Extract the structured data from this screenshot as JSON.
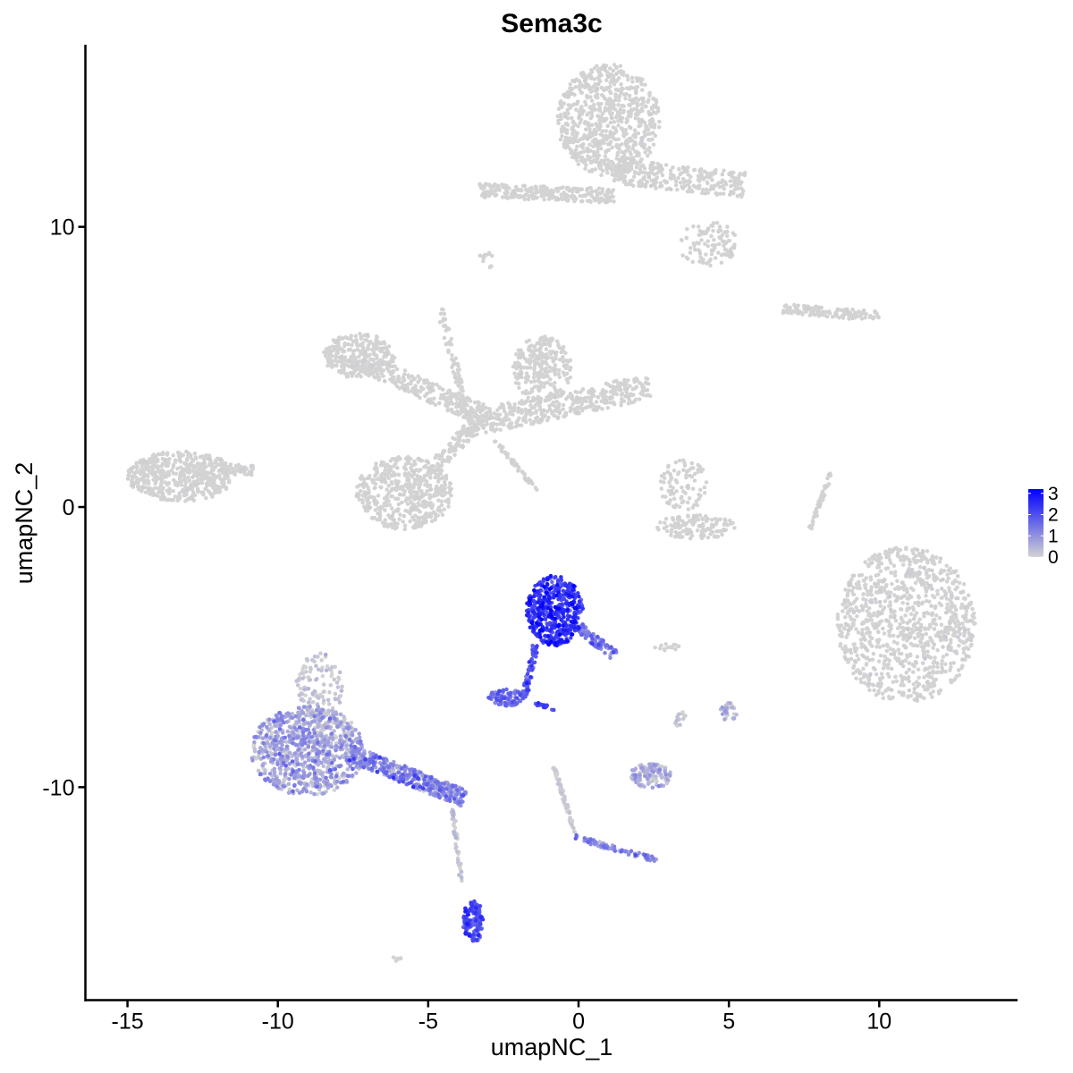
{
  "chart_data": {
    "type": "scatter",
    "title": "Sema3c",
    "xlabel": "umapNC_1",
    "ylabel": "umapNC_2",
    "xlim": [
      -16.4,
      14.6
    ],
    "ylim": [
      -17.6,
      16.5
    ],
    "x_ticks": [
      -15,
      -10,
      -5,
      0,
      5,
      10
    ],
    "y_ticks": [
      -10,
      0,
      10
    ],
    "x_tick_labels": [
      "-15",
      "-10",
      "-5",
      "0",
      "5",
      "10"
    ],
    "y_tick_labels": [
      "-10",
      "0",
      "10"
    ],
    "grid": false,
    "legend": {
      "position": "right",
      "type": "colorbar",
      "title": "",
      "min": 0,
      "max": 3.2,
      "ticks": [
        0,
        1,
        2,
        3
      ],
      "tick_labels": [
        "0",
        "1",
        "2",
        "3"
      ]
    },
    "color_low": "#d3d3d3",
    "color_high": "#0000ff",
    "marker_size_px": 4.5,
    "clusters": [
      {
        "shape": "ellipse",
        "cx": 1.0,
        "cy": 13.8,
        "rx": 1.7,
        "ry": 2.0,
        "n": 750,
        "expr_mean": 0.0,
        "expr_sd": 0.03
      },
      {
        "shape": "line",
        "x1": -3.3,
        "y1": 11.3,
        "x2": 1.2,
        "y2": 11.1,
        "width": 0.5,
        "n": 250,
        "expr_mean": 0.0,
        "expr_sd": 0.03
      },
      {
        "shape": "line",
        "x1": 1.0,
        "y1": 12.0,
        "x2": 5.5,
        "y2": 11.5,
        "width": 0.9,
        "n": 280,
        "expr_mean": 0.0,
        "expr_sd": 0.03
      },
      {
        "shape": "ellipse",
        "cx": 4.3,
        "cy": 9.4,
        "rx": 1.0,
        "ry": 0.8,
        "n": 100,
        "expr_mean": 0.0,
        "expr_sd": 0.03
      },
      {
        "shape": "ellipse",
        "cx": -3.1,
        "cy": 8.8,
        "rx": 0.3,
        "ry": 0.3,
        "n": 12,
        "expr_mean": 0.0,
        "expr_sd": 0.0
      },
      {
        "shape": "line",
        "x1": 6.8,
        "y1": 7.1,
        "x2": 10.0,
        "y2": 6.8,
        "width": 0.35,
        "n": 130,
        "expr_mean": 0.0,
        "expr_sd": 0.03
      },
      {
        "shape": "ellipse",
        "cx": -7.3,
        "cy": 5.4,
        "rx": 1.2,
        "ry": 0.8,
        "n": 260,
        "expr_mean": 0.0,
        "expr_sd": 0.03
      },
      {
        "shape": "line",
        "x1": -7.5,
        "y1": 5.3,
        "x2": -3.0,
        "y2": 3.2,
        "width": 0.7,
        "n": 260,
        "expr_mean": 0.0,
        "expr_sd": 0.03
      },
      {
        "shape": "line",
        "x1": -4.6,
        "y1": 7.1,
        "x2": -3.7,
        "y2": 3.2,
        "width": 0.25,
        "n": 80,
        "expr_mean": 0.0,
        "expr_sd": 0.03
      },
      {
        "shape": "line",
        "x1": -3.5,
        "y1": 3.0,
        "x2": 2.4,
        "y2": 4.3,
        "width": 0.9,
        "n": 380,
        "expr_mean": 0.0,
        "expr_sd": 0.03
      },
      {
        "shape": "ellipse",
        "cx": -1.2,
        "cy": 4.9,
        "rx": 1.0,
        "ry": 1.2,
        "n": 260,
        "expr_mean": 0.0,
        "expr_sd": 0.03
      },
      {
        "shape": "line",
        "x1": -3.4,
        "y1": 3.0,
        "x2": -5.0,
        "y2": 1.2,
        "width": 0.5,
        "n": 110,
        "expr_mean": 0.0,
        "expr_sd": 0.03
      },
      {
        "shape": "ellipse",
        "cx": -5.8,
        "cy": 0.5,
        "rx": 1.6,
        "ry": 1.3,
        "n": 480,
        "expr_mean": 0.0,
        "expr_sd": 0.03
      },
      {
        "shape": "line",
        "x1": -2.8,
        "y1": 2.4,
        "x2": -1.4,
        "y2": 0.6,
        "width": 0.12,
        "n": 45,
        "expr_mean": 0.0,
        "expr_sd": 0.05
      },
      {
        "shape": "ellipse",
        "cx": -13.2,
        "cy": 1.1,
        "rx": 1.8,
        "ry": 0.9,
        "n": 520,
        "expr_mean": 0.0,
        "expr_sd": 0.03
      },
      {
        "shape": "line",
        "x1": -12.0,
        "y1": 1.4,
        "x2": -10.8,
        "y2": 1.3,
        "width": 0.35,
        "n": 60,
        "expr_mean": 0.0,
        "expr_sd": 0.03
      },
      {
        "shape": "ellipse",
        "cx": 3.5,
        "cy": 0.8,
        "rx": 0.8,
        "ry": 0.9,
        "n": 90,
        "expr_mean": 0.0,
        "expr_sd": 0.03
      },
      {
        "shape": "ellipse",
        "cx": 3.9,
        "cy": -0.7,
        "rx": 1.3,
        "ry": 0.45,
        "n": 130,
        "expr_mean": 0.0,
        "expr_sd": 0.03
      },
      {
        "shape": "line",
        "x1": 7.7,
        "y1": -0.8,
        "x2": 8.4,
        "y2": 1.2,
        "width": 0.12,
        "n": 55,
        "expr_mean": 0.0,
        "expr_sd": 0.03
      },
      {
        "shape": "ellipse",
        "cx": 10.9,
        "cy": -4.2,
        "rx": 2.3,
        "ry": 2.8,
        "n": 1000,
        "expr_mean": 0.0,
        "expr_sd": 0.05
      },
      {
        "shape": "ellipse",
        "cx": -0.8,
        "cy": -3.7,
        "rx": 0.95,
        "ry": 1.25,
        "n": 480,
        "expr_mean": 2.3,
        "expr_sd": 0.45
      },
      {
        "shape": "line",
        "x1": 0.0,
        "y1": -4.3,
        "x2": 1.2,
        "y2": -5.3,
        "width": 0.35,
        "n": 90,
        "expr_mean": 1.1,
        "expr_sd": 0.5
      },
      {
        "shape": "line",
        "x1": -1.4,
        "y1": -4.8,
        "x2": -1.8,
        "y2": -6.8,
        "width": 0.2,
        "n": 70,
        "expr_mean": 1.7,
        "expr_sd": 0.4
      },
      {
        "shape": "ellipse",
        "cx": -2.4,
        "cy": -6.8,
        "rx": 0.6,
        "ry": 0.3,
        "n": 90,
        "expr_mean": 1.4,
        "expr_sd": 0.35
      },
      {
        "shape": "line",
        "x1": -1.5,
        "y1": -7.0,
        "x2": -0.8,
        "y2": -7.2,
        "width": 0.12,
        "n": 18,
        "expr_mean": 2.0,
        "expr_sd": 0.3
      },
      {
        "shape": "ellipse",
        "cx": -9.0,
        "cy": -8.7,
        "rx": 1.9,
        "ry": 1.6,
        "n": 900,
        "expr_mean": 0.55,
        "expr_sd": 0.45
      },
      {
        "shape": "ellipse",
        "cx": -8.6,
        "cy": -6.4,
        "rx": 0.8,
        "ry": 1.2,
        "n": 120,
        "expr_mean": 0.15,
        "expr_sd": 0.2
      },
      {
        "shape": "line",
        "x1": -7.6,
        "y1": -8.8,
        "x2": -3.8,
        "y2": -10.4,
        "width": 0.6,
        "n": 380,
        "expr_mean": 1.0,
        "expr_sd": 0.5
      },
      {
        "shape": "line",
        "x1": -4.2,
        "y1": -10.6,
        "x2": -3.9,
        "y2": -13.4,
        "width": 0.12,
        "n": 45,
        "expr_mean": 0.15,
        "expr_sd": 0.2
      },
      {
        "shape": "ellipse",
        "cx": -3.5,
        "cy": -14.8,
        "rx": 0.35,
        "ry": 0.75,
        "n": 140,
        "expr_mean": 1.85,
        "expr_sd": 0.4
      },
      {
        "shape": "line",
        "x1": -0.8,
        "y1": -9.3,
        "x2": -0.1,
        "y2": -11.7,
        "width": 0.12,
        "n": 60,
        "expr_mean": 0.05,
        "expr_sd": 0.1
      },
      {
        "shape": "line",
        "x1": -0.1,
        "y1": -11.8,
        "x2": 2.6,
        "y2": -12.6,
        "width": 0.18,
        "n": 80,
        "expr_mean": 1.1,
        "expr_sd": 0.4
      },
      {
        "shape": "ellipse",
        "cx": 2.4,
        "cy": -9.6,
        "rx": 0.7,
        "ry": 0.45,
        "n": 120,
        "expr_mean": 0.4,
        "expr_sd": 0.35
      },
      {
        "shape": "ellipse",
        "cx": 5.0,
        "cy": -7.3,
        "rx": 0.3,
        "ry": 0.4,
        "n": 30,
        "expr_mean": 0.3,
        "expr_sd": 0.3
      },
      {
        "shape": "ellipse",
        "cx": 3.4,
        "cy": -7.6,
        "rx": 0.2,
        "ry": 0.3,
        "n": 14,
        "expr_mean": 0.1,
        "expr_sd": 0.15
      },
      {
        "shape": "ellipse",
        "cx": 2.9,
        "cy": -5.0,
        "rx": 0.5,
        "ry": 0.12,
        "n": 14,
        "expr_mean": 0.0,
        "expr_sd": 0.0
      },
      {
        "shape": "ellipse",
        "cx": -6.0,
        "cy": -16.1,
        "rx": 0.2,
        "ry": 0.15,
        "n": 6,
        "expr_mean": 0.0,
        "expr_sd": 0.0
      }
    ]
  }
}
